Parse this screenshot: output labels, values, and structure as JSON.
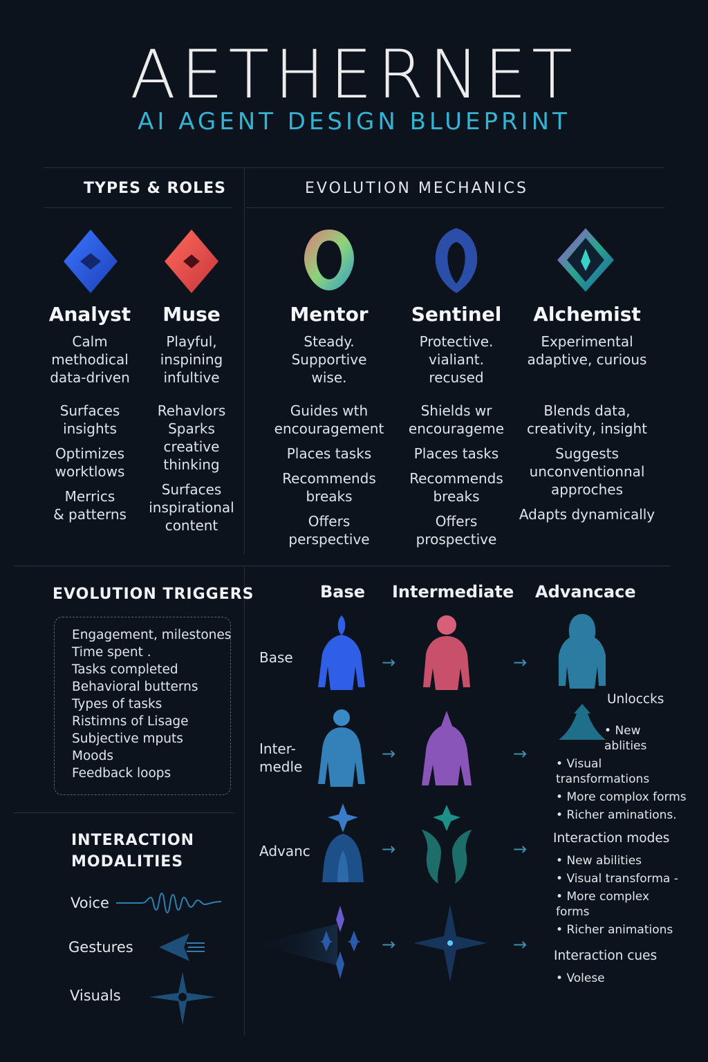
{
  "header": {
    "title": "AETHERNET",
    "subtitle": "AI AGENT DESIGN BLUEPRINT"
  },
  "sections": {
    "types_roles": "TYPES & ROLES",
    "evolution_mechanics": "EVOLUTION MECHANICS",
    "evolution_triggers": "EVOLUTION TRIGGERS",
    "interaction_modalities": "INTERACTION\nMODALITIES"
  },
  "agents": [
    {
      "name": "Analyst",
      "icon": "blue-diamond-icon",
      "color": "#2e5fe6",
      "desc": "Calm\nmethodical\ndata-driven",
      "behaviors": [
        "Surfaces\ninsights",
        "Optimizes\nworktlows",
        "Merrics\n& patterns"
      ]
    },
    {
      "name": "Muse",
      "icon": "red-diamond-icon",
      "color": "#e2574a",
      "desc": "Playful,\ninspining\ninfultive",
      "behaviors": [
        "Rehavlors\nSparks\ncreative\nthinking",
        "Surfaces\ninspirational\ncontent"
      ]
    },
    {
      "name": "Mentor",
      "icon": "gradient-ring-icon",
      "color": "#8fd37a",
      "desc": "Steady.\nSupportive\nwise.",
      "behaviors": [
        "Guides wth\nencouragement",
        "Places tasks",
        "Recommends\nbreaks",
        "Offers\nperspective"
      ]
    },
    {
      "name": "Sentinel",
      "icon": "hooded-shield-icon",
      "color": "#2b4fa8",
      "desc": "Protective.\nvialiant.\nrecused",
      "behaviors": [
        "Shields wr\nencourageme",
        "Places tasks",
        "Recommends\nbreaks",
        "Offers\nprospective"
      ]
    },
    {
      "name": "Alchemist",
      "icon": "prism-diamond-icon",
      "color": "#2aa58c",
      "desc": "Experimental\nadaptive, curious",
      "behaviors": [
        "Blends data,\ncreativity, insight",
        "Suggests\nunconventionnal\napproches",
        "Adapts dynamically"
      ]
    }
  ],
  "triggers": [
    "Engagement, milestones",
    "Time spent .",
    "Tasks completed",
    "Behavioral butterns",
    "Types of tasks",
    "Ristimns of Lisage",
    "Subjective mputs",
    "Moods",
    "Feedback loops"
  ],
  "stages": {
    "headers": [
      "Base",
      "Intermediate",
      "Advancace"
    ],
    "rows": [
      "Base",
      "Inter-\nmedle",
      "Advanc",
      ""
    ]
  },
  "unlocks": {
    "title": "Unloccks",
    "items": [
      "New\nablities",
      "Visual\ntransformations",
      "More complox forms",
      "Richer aminations."
    ]
  },
  "interaction_modes": {
    "title": "Interaction modes",
    "items": [
      "New abilities",
      "Visual transforma -",
      "More complex\nforms",
      "Richer animations"
    ]
  },
  "interaction_cues": {
    "title": "Interaction cues",
    "items": [
      "Volese"
    ]
  },
  "modalities": [
    {
      "label": "Voice",
      "icon": "waveform-icon"
    },
    {
      "label": "Gestures",
      "icon": "gesture-arrow-icon"
    },
    {
      "label": "Visuals",
      "icon": "star-burst-icon"
    }
  ],
  "colors": {
    "background": "#0c131d",
    "accent": "#34b3d3",
    "divider": "#243040"
  }
}
